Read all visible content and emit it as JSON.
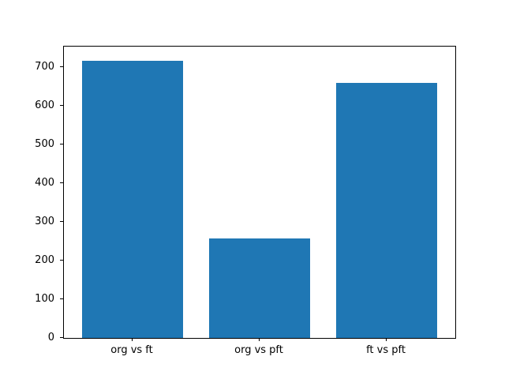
{
  "chart_data": {
    "type": "bar",
    "categories": [
      "org vs ft",
      "org vs pft",
      "ft vs pft"
    ],
    "values": [
      718,
      257,
      660
    ],
    "title": "",
    "xlabel": "",
    "ylabel": "",
    "ylim": [
      0,
      754
    ],
    "yticks": [
      0,
      100,
      200,
      300,
      400,
      500,
      600,
      700
    ],
    "bar_color": "#1f77b4",
    "bar_width_axis_units": 0.8,
    "grid": false,
    "legend": null,
    "text_color": "#000000",
    "spine_color": "#000000",
    "background_color": "#ffffff"
  }
}
